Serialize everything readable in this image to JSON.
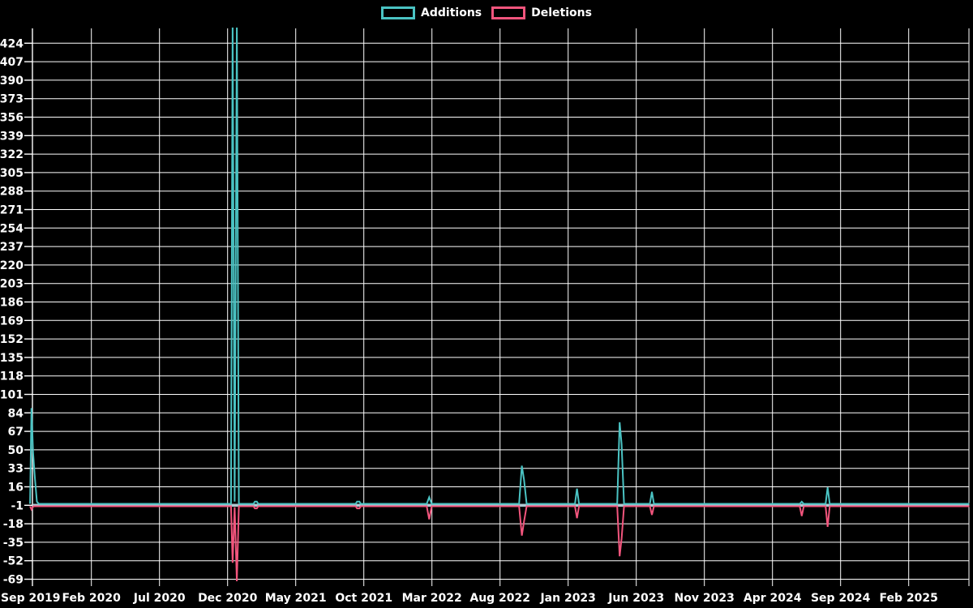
{
  "legend": {
    "items": [
      {
        "label": "Additions",
        "color": "#4AC3C3"
      },
      {
        "label": "Deletions",
        "color": "#F2557D"
      }
    ]
  },
  "chart_data": {
    "type": "line",
    "title": "",
    "background": "#000000",
    "grid_color": "#FFFFFF",
    "axis_text_color": "#FFFFFF",
    "baseline_color": "#AFC9D2",
    "legend_position": "top-center",
    "grid": true,
    "y_axis": {
      "tick_step": 17,
      "ticks": [
        424,
        407,
        390,
        373,
        356,
        339,
        322,
        305,
        288,
        271,
        254,
        237,
        220,
        203,
        186,
        169,
        152,
        135,
        118,
        101,
        84,
        67,
        50,
        33,
        16,
        -1,
        -18,
        -35,
        -52,
        -69
      ],
      "range_drawn": [
        -69,
        437
      ],
      "note": "Dec 2020 addition spikes are clipped at the top of the plot (exceed 424 tick)"
    },
    "x_axis": {
      "unit": "months since Sep 2019",
      "labels": [
        "Sep 2019",
        "Feb 2020",
        "Jul 2020",
        "Dec 2020",
        "May 2021",
        "Oct 2021",
        "Mar 2022",
        "Aug 2022",
        "Jan 2023",
        "Jun 2023",
        "Nov 2023",
        "Apr 2024",
        "Sep 2024",
        "Feb 2025"
      ],
      "label_offsets": [
        0,
        5,
        10,
        15,
        20,
        25,
        30,
        35,
        40,
        45,
        50,
        55,
        60,
        65
      ],
      "months_range": [
        0,
        69.45
      ]
    },
    "events": [
      {
        "date": "Sep 2019",
        "additions": 88,
        "deletions": 3
      },
      {
        "date": "Dec 2020 (wk 1)",
        "additions": 445,
        "deletions": 52,
        "additions_clipped": true
      },
      {
        "date": "Dec 2020 (wk 2)",
        "additions": 445,
        "deletions": 69,
        "additions_clipped": true
      },
      {
        "date": "Feb 2021",
        "additions": 2,
        "deletions": 2
      },
      {
        "date": "Sep 2021",
        "additions": 2,
        "deletions": 2
      },
      {
        "date": "Mar 2022",
        "additions": 6,
        "deletions": 12
      },
      {
        "date": "Sep 2022",
        "additions": 35,
        "deletions": 27
      },
      {
        "date": "Jan 2023",
        "additions": 14,
        "deletions": 11
      },
      {
        "date": "May 2023 (wk 1)",
        "additions": 75,
        "deletions": 46
      },
      {
        "date": "May 2023 (wk 2)",
        "additions": 55,
        "deletions": 30
      },
      {
        "date": "Jul 2023",
        "additions": 11,
        "deletions": 8
      },
      {
        "date": "Jun 2024",
        "additions": 2,
        "deletions": 9
      },
      {
        "date": "Aug 2024",
        "additions": 15,
        "deletions": 19
      }
    ],
    "series": [
      {
        "name": "Additions",
        "color": "#4AC3C3",
        "points": [
          [
            0.5,
            0
          ],
          [
            0.6,
            88
          ],
          [
            0.72,
            47
          ],
          [
            0.85,
            24
          ],
          [
            1.0,
            2
          ],
          [
            1.15,
            0
          ],
          [
            15.25,
            0
          ],
          [
            15.37,
            445
          ],
          [
            15.52,
            2
          ],
          [
            15.68,
            445
          ],
          [
            15.83,
            0
          ],
          [
            16.9,
            0
          ],
          [
            17.0,
            2
          ],
          [
            17.15,
            2
          ],
          [
            17.25,
            0
          ],
          [
            24.4,
            0
          ],
          [
            24.5,
            2
          ],
          [
            24.68,
            2
          ],
          [
            24.78,
            0
          ],
          [
            29.62,
            0
          ],
          [
            29.8,
            6
          ],
          [
            29.98,
            0
          ],
          [
            36.4,
            0
          ],
          [
            36.6,
            35
          ],
          [
            36.76,
            22
          ],
          [
            36.95,
            0
          ],
          [
            40.5,
            0
          ],
          [
            40.65,
            14
          ],
          [
            40.8,
            0
          ],
          [
            43.6,
            0
          ],
          [
            43.78,
            75
          ],
          [
            43.92,
            55
          ],
          [
            44.1,
            0
          ],
          [
            46.0,
            0
          ],
          [
            46.15,
            11
          ],
          [
            46.3,
            0
          ],
          [
            57.0,
            0
          ],
          [
            57.15,
            2
          ],
          [
            57.3,
            0
          ],
          [
            58.9,
            0
          ],
          [
            59.05,
            15
          ],
          [
            59.2,
            0
          ],
          [
            69.45,
            0
          ]
        ]
      },
      {
        "name": "Deletions",
        "color": "#F2557D",
        "points": [
          [
            0.5,
            0
          ],
          [
            0.6,
            -3
          ],
          [
            0.75,
            0
          ],
          [
            15.25,
            0
          ],
          [
            15.37,
            -52
          ],
          [
            15.52,
            -1
          ],
          [
            15.68,
            -69
          ],
          [
            15.83,
            0
          ],
          [
            16.9,
            0
          ],
          [
            17.0,
            -2
          ],
          [
            17.15,
            -2
          ],
          [
            17.25,
            0
          ],
          [
            24.4,
            0
          ],
          [
            24.5,
            -2
          ],
          [
            24.68,
            -2
          ],
          [
            24.78,
            0
          ],
          [
            29.62,
            0
          ],
          [
            29.8,
            -12
          ],
          [
            29.98,
            0
          ],
          [
            36.4,
            0
          ],
          [
            36.6,
            -27
          ],
          [
            36.76,
            -14
          ],
          [
            36.95,
            0
          ],
          [
            40.5,
            0
          ],
          [
            40.65,
            -11
          ],
          [
            40.8,
            0
          ],
          [
            43.6,
            0
          ],
          [
            43.78,
            -46
          ],
          [
            43.92,
            -30
          ],
          [
            44.1,
            0
          ],
          [
            46.0,
            0
          ],
          [
            46.15,
            -8
          ],
          [
            46.3,
            0
          ],
          [
            57.0,
            0
          ],
          [
            57.15,
            -9
          ],
          [
            57.3,
            0
          ],
          [
            58.9,
            0
          ],
          [
            59.05,
            -19
          ],
          [
            59.2,
            0
          ],
          [
            69.45,
            0
          ]
        ]
      }
    ]
  }
}
